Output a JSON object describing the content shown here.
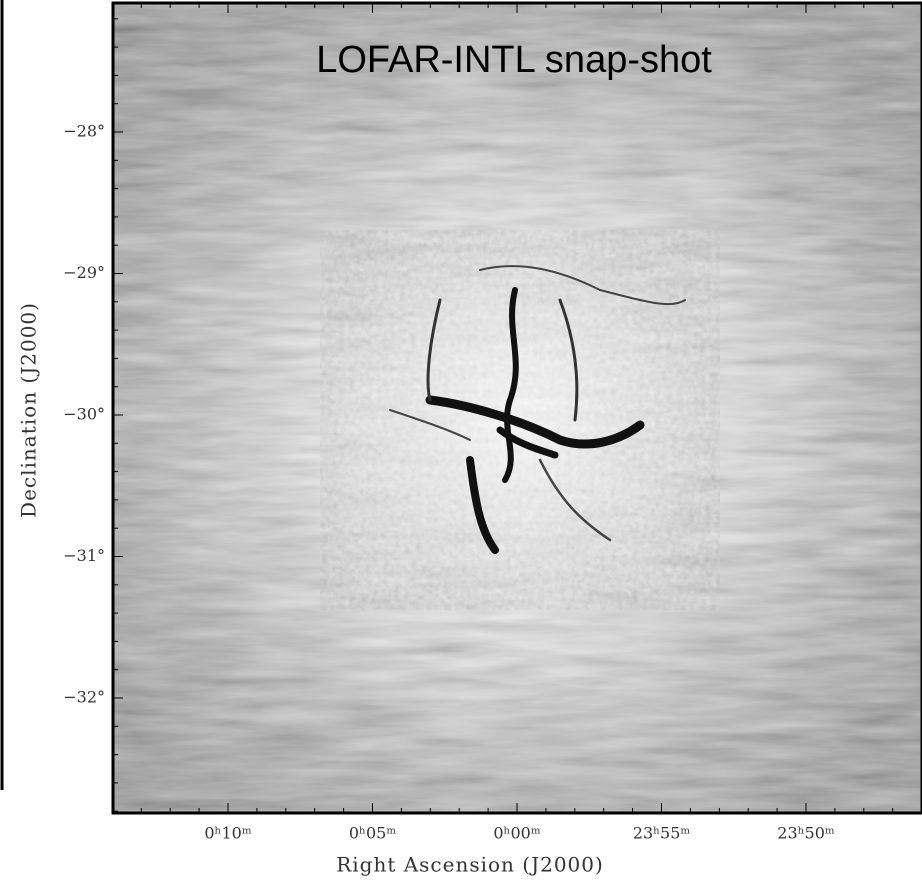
{
  "title": "LOFAR-INTL snap-shot",
  "axes": {
    "x_label": "Right Ascension (J2000)",
    "y_label": "Declination (J2000)",
    "x_ticks": [
      "0ʰ10ᵐ",
      "0ʰ05ᵐ",
      "0ʰ00ᵐ",
      "23ʰ55ᵐ",
      "23ʰ50ᵐ"
    ],
    "y_ticks": [
      "−28°",
      "−29°",
      "−30°",
      "−31°",
      "−32°"
    ]
  }
}
